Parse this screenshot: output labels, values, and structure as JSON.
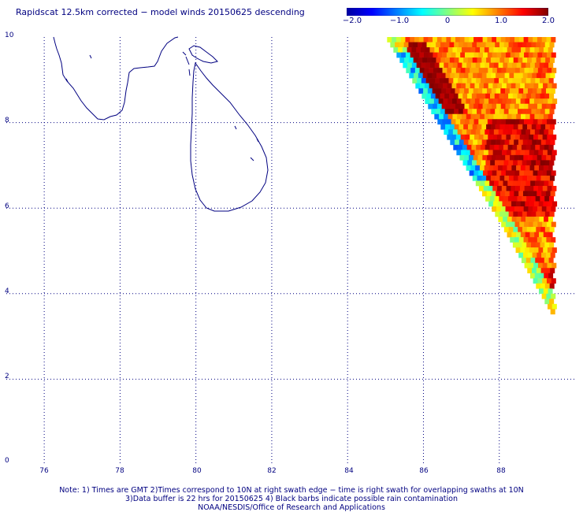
{
  "title": "Rapidscat 12.5km corrected − model winds 20150625 descending",
  "colorbar": {
    "labels": [
      "−2.0",
      "−1.0",
      "0",
      "1.0",
      "2.0"
    ],
    "range": [
      -2.0,
      2.0
    ],
    "colors": [
      "#0000a0",
      "#0000ff",
      "#0080ff",
      "#00ffff",
      "#80ff80",
      "#ffff00",
      "#ff8000",
      "#ff0000",
      "#800000"
    ]
  },
  "axes": {
    "x_ticks": [
      "76",
      "78",
      "80",
      "82",
      "84",
      "86",
      "88"
    ],
    "y_ticks": [
      "10",
      "8",
      "6",
      "4",
      "2",
      "0"
    ],
    "lon_range": [
      75,
      90
    ],
    "lat_range": [
      0,
      10
    ]
  },
  "notes": [
    "Note: 1) Times are GMT 2)Times correspond to 10N at right swath edge − time is right swath for overlapping swaths at 10N",
    "3)Data buffer is 22 hrs for 20150625 4) Black barbs indicate possible rain contamination",
    "NOAA/NESDIS/Office of Research and Applications"
  ],
  "chart_data": {
    "type": "heatmap",
    "title": "Rapidscat 12.5km corrected − model winds 20150625 descending",
    "xlabel": "",
    "ylabel": "",
    "x_range": [
      75,
      90
    ],
    "y_range": [
      0,
      10
    ],
    "value_range": [
      -2.0,
      2.0
    ],
    "swath_edge": [
      [
        85.0,
        10.0
      ],
      [
        86.8,
        7.4
      ],
      [
        88.0,
        5.7
      ],
      [
        89.4,
        3.5
      ]
    ],
    "zones": [
      {
        "name": "swath-edge-low",
        "lon": [
          85.0,
          87.8
        ],
        "lat": [
          6.6,
          9.6
        ],
        "value": -1.2
      },
      {
        "name": "coastal-maximum",
        "lon": [
          85.5,
          87.0
        ],
        "lat": [
          8.2,
          9.8
        ],
        "value": 1.9
      },
      {
        "name": "east-core",
        "lon": [
          87.6,
          89.4
        ],
        "lat": [
          5.8,
          8.0
        ],
        "value": 1.6
      },
      {
        "name": "south-tip",
        "lon": [
          88.6,
          89.4
        ],
        "lat": [
          3.6,
          4.6
        ],
        "value": 1.5
      },
      {
        "name": "background",
        "lon": [
          85.0,
          89.4
        ],
        "lat": [
          3.5,
          10.0
        ],
        "value": 1.0
      }
    ]
  }
}
